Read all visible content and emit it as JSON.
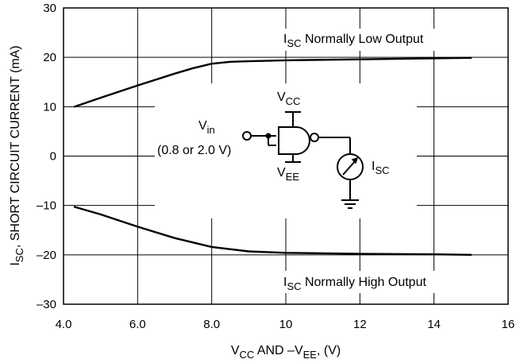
{
  "chart_data": {
    "type": "line",
    "xlim": [
      4.0,
      16
    ],
    "ylim": [
      -30,
      30
    ],
    "x_ticks": [
      "4.0",
      "6.0",
      "8.0",
      "10",
      "12",
      "14",
      "16"
    ],
    "x_tick_values": [
      4,
      6,
      8,
      10,
      12,
      14,
      16
    ],
    "y_ticks": [
      "30",
      "20",
      "10",
      "0",
      "-10",
      "-20",
      "-30"
    ],
    "y_tick_values": [
      30,
      20,
      10,
      0,
      -10,
      -20,
      -30
    ],
    "grid": true,
    "xlabel": {
      "main": "V",
      "sub1": "CC",
      "mid": " AND –V",
      "sub2": "EE",
      "tail": ", (V)"
    },
    "ylabel": {
      "main": "I",
      "sub": "SC",
      "tail": ",  SHORT CIRCUIT CURRENT (mA)"
    },
    "series": [
      {
        "label": {
          "main": "I",
          "sub": "SC",
          "tail": " Normally Low Output"
        },
        "x": [
          4.3,
          5.0,
          6.0,
          7.0,
          7.5,
          8.0,
          8.5,
          9.0,
          10.0,
          12.0,
          14.0,
          15.0
        ],
        "y": [
          10.0,
          11.8,
          14.3,
          16.7,
          17.8,
          18.7,
          19.1,
          19.2,
          19.4,
          19.6,
          19.8,
          19.9
        ]
      },
      {
        "label": {
          "main": "I",
          "sub": "SC",
          "tail": " Normally High Output"
        },
        "x": [
          4.3,
          5.0,
          6.0,
          7.0,
          8.0,
          9.0,
          10.0,
          12.0,
          14.0,
          15.0
        ],
        "y": [
          -10.3,
          -11.8,
          -14.3,
          -16.6,
          -18.4,
          -19.3,
          -19.6,
          -19.8,
          -19.9,
          -20.0
        ]
      }
    ]
  },
  "inset": {
    "vin": {
      "main": "V",
      "sub": "in"
    },
    "vin_range": "(0.8 or 2.0 V)",
    "vcc": {
      "main": "V",
      "sub": "CC"
    },
    "vee": {
      "main": "V",
      "sub": "EE"
    },
    "isc": {
      "main": "I",
      "sub": "SC"
    }
  }
}
